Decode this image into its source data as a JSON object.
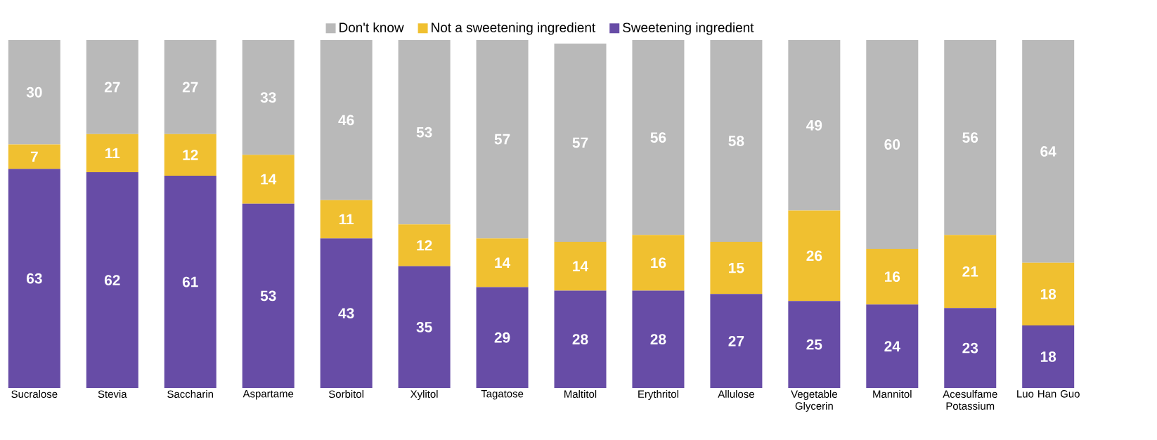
{
  "chart_data": {
    "type": "bar",
    "stacked": true,
    "data_labels": true,
    "legend": "top",
    "categories": [
      "Sucralose",
      "Stevia",
      "Saccharin",
      "Aspartame",
      "Sorbitol",
      "Xylitol",
      "Tagatose",
      "Maltitol",
      "Erythritol",
      "Allulose",
      "Vegetable Glycerin",
      "Mannitol",
      "Acesulfame Potassium",
      "Luo Han Guo"
    ],
    "series": [
      {
        "name": "Sweetening ingredient",
        "color": "#674ca6",
        "values": [
          63,
          62,
          61,
          53,
          43,
          35,
          29,
          28,
          28,
          27,
          25,
          24,
          23,
          18
        ]
      },
      {
        "name": "Not a sweetening ingredient",
        "color": "#f0c030",
        "values": [
          7,
          11,
          12,
          14,
          11,
          12,
          14,
          14,
          16,
          15,
          26,
          16,
          21,
          18
        ]
      },
      {
        "name": "Don't know",
        "color": "#b9b9b9",
        "values": [
          30,
          27,
          27,
          33,
          46,
          53,
          57,
          57,
          56,
          58,
          49,
          60,
          56,
          64
        ]
      }
    ]
  }
}
